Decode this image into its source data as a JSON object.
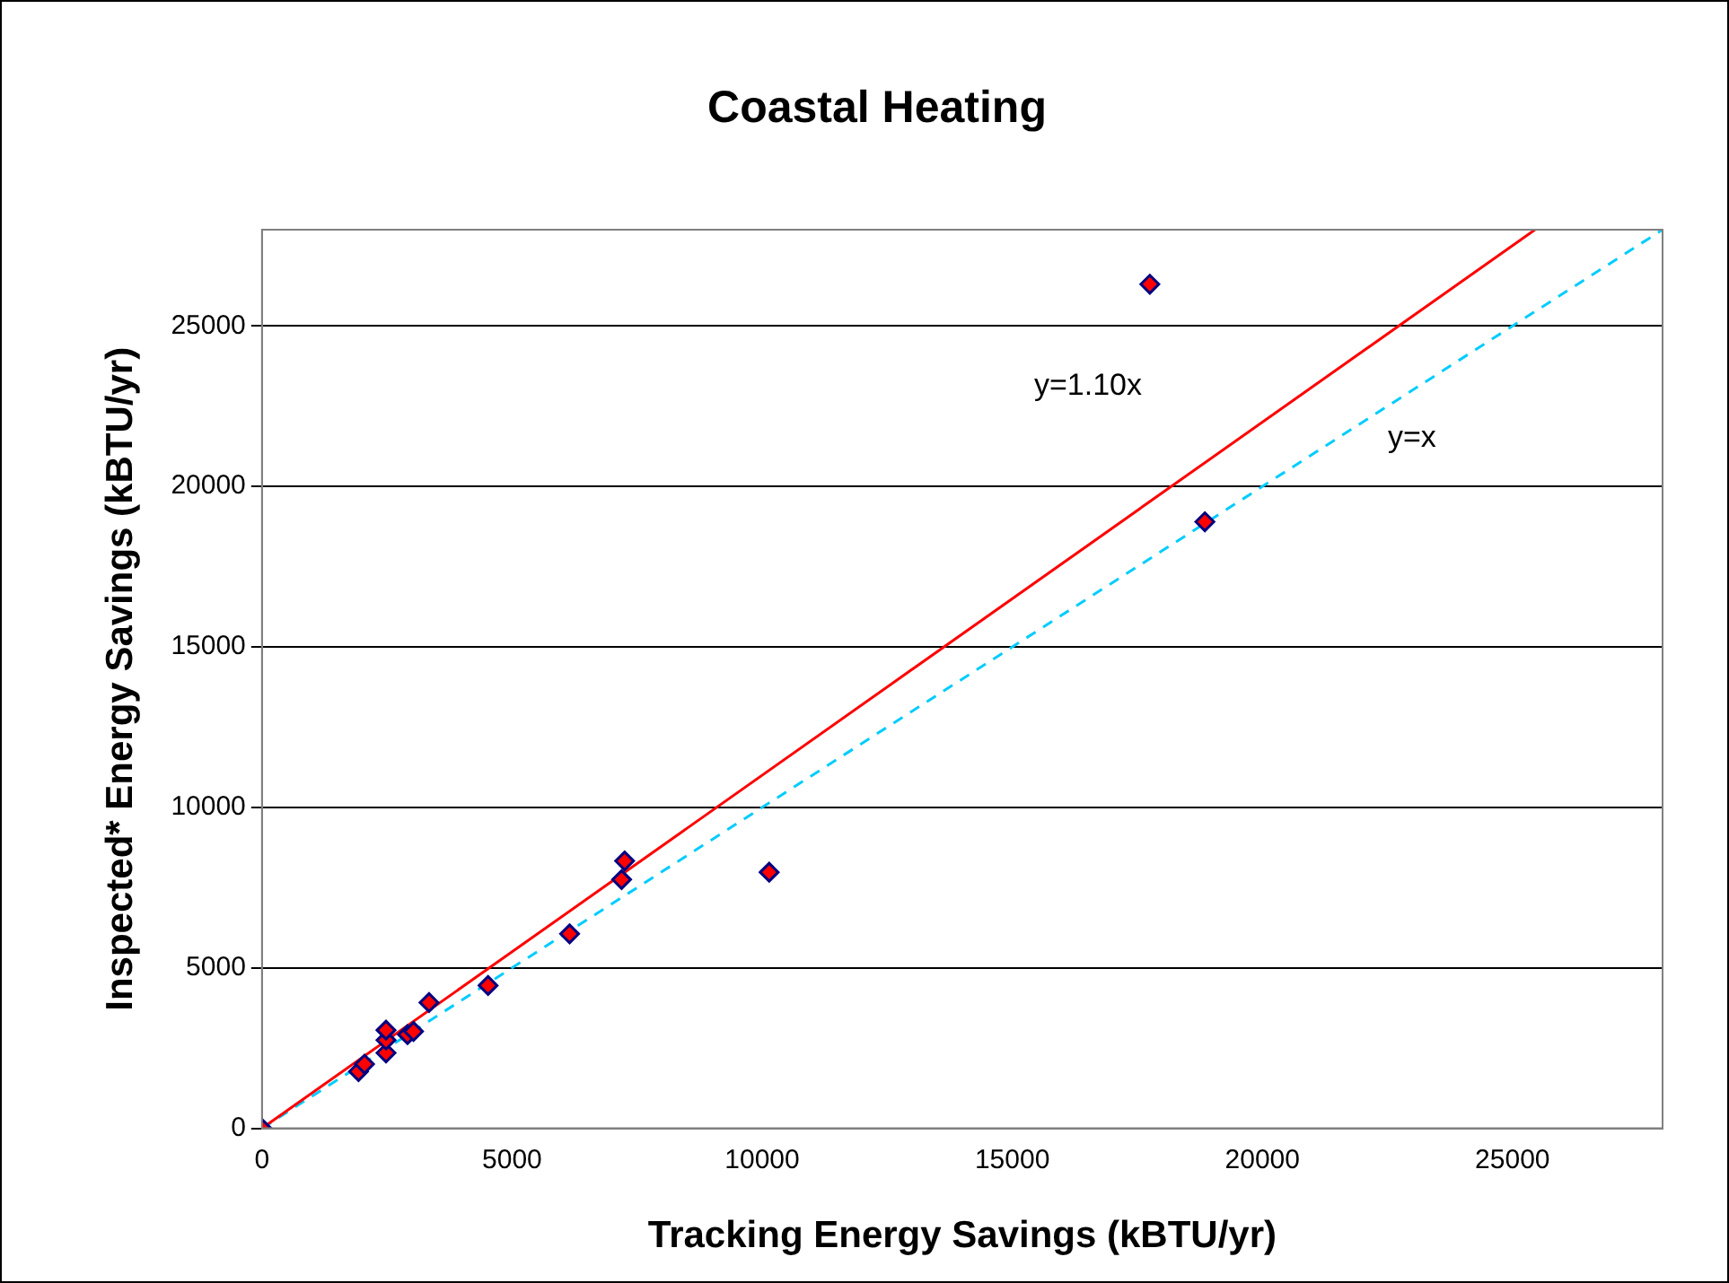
{
  "chart_data": {
    "type": "scatter",
    "title": "Coastal Heating",
    "xlabel": "Tracking Energy Savings (kBTU/yr)",
    "ylabel": "Inspected* Energy Savings (kBTU/yr)",
    "xlim": [
      0,
      28000
    ],
    "ylim": [
      0,
      28000
    ],
    "xticks": [
      0,
      5000,
      10000,
      15000,
      20000,
      25000
    ],
    "yticks": [
      0,
      5000,
      10000,
      15000,
      20000,
      25000
    ],
    "grid": "y",
    "legend": false,
    "series": [
      {
        "color": "#ff0000",
        "marker": "diamond",
        "x": [
          0,
          1930,
          2050,
          2480,
          2480,
          2480,
          2910,
          3030,
          3340,
          4520,
          6150,
          7190,
          7250,
          10140,
          17750,
          18850
        ],
        "values": [
          0,
          1770,
          2000,
          2350,
          2750,
          3060,
          2920,
          3020,
          3920,
          4450,
          6060,
          7750,
          8330,
          7980,
          26300,
          18900
        ]
      },
      {
        "type": "line",
        "color": "#ff0000",
        "line_style": "solid",
        "x": [
          0,
          25450
        ],
        "values": [
          0,
          28000
        ]
      },
      {
        "type": "line",
        "color": "#00ccff",
        "line_style": "dashed",
        "x": [
          0,
          28000
        ],
        "values": [
          0,
          28000
        ]
      }
    ],
    "annotations": [
      "y=1.10x",
      "y=x"
    ]
  }
}
